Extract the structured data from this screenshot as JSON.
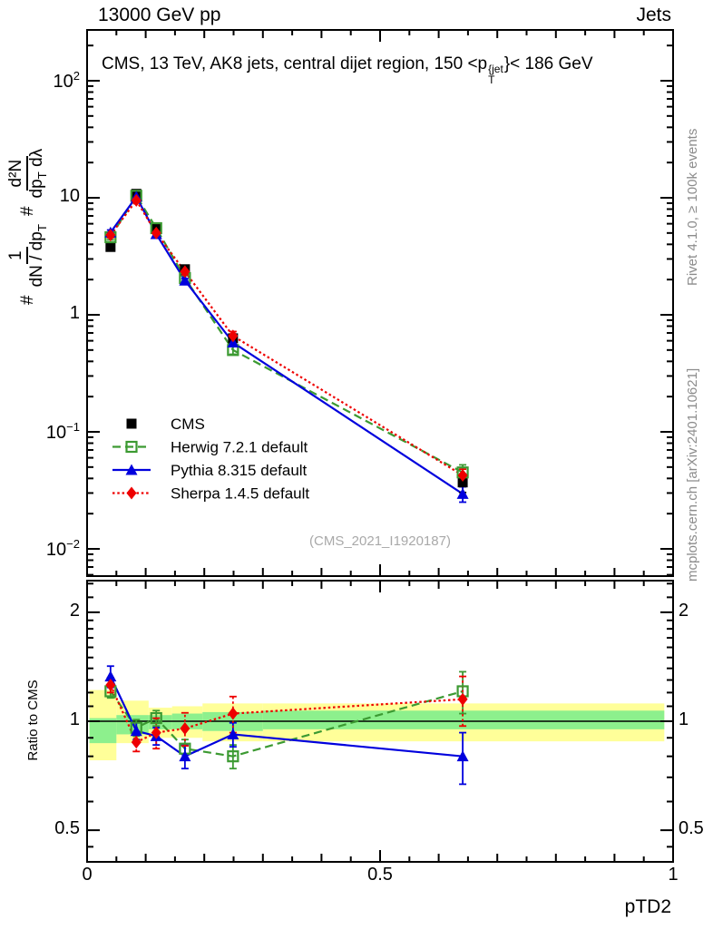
{
  "header": {
    "left": "13000 GeV pp",
    "right": "Jets"
  },
  "title": {
    "prefix": "CMS, 13 TeV, AK8 jets, central dijet region, 150 <p",
    "sup": "{jet",
    "sub": "T",
    "suffix": "}< 186 GeV"
  },
  "watermark": "(CMS_2021_I1920187)",
  "right_margin": {
    "top": "Rivet 4.1.0, ≥ 100k events",
    "bottom": "mcplots.cern.ch [arXiv:2401.10621]"
  },
  "labels": {
    "x": "pTD2",
    "ratio_y": "Ratio to CMS"
  },
  "ylabel": {
    "hash1": "#",
    "frac1_num": "1",
    "frac1_den_main": "dN / dp",
    "frac1_den_sub": "T",
    "hash2": "#",
    "frac2_num": "d²N",
    "frac2_den_main": "dp",
    "frac2_den_sub": "T",
    "frac2_den_tail": " dλ"
  },
  "colors": {
    "cms": "#000000",
    "herwig": "#3c9a32",
    "pythia": "#0000dd",
    "sherpa": "#ee0000",
    "band_yellow": "#ffff99",
    "band_green": "#8df08d",
    "side_text": "#8c8c8c",
    "watermark": "#a9a9a9"
  },
  "legend": {
    "items": [
      {
        "label": "CMS"
      },
      {
        "label": "Herwig 7.2.1 default"
      },
      {
        "label": "Pythia 8.315 default"
      },
      {
        "label": "Sherpa 1.4.5 default"
      }
    ]
  },
  "chart_data": [
    {
      "type": "line",
      "id": "main",
      "title": "CMS, 13 TeV, AK8 jets, central dijet region, 150 < pT{jet} < 186 GeV",
      "xlabel": "pTD2",
      "ylabel": "# 1/(dN/dpT) # d²N/(dpT dλ)",
      "x_axis_range": [
        0,
        1
      ],
      "y_axis_log_range": [
        0.0058,
        272
      ],
      "grid": false,
      "legend_position": "center-left-inside",
      "y_tick_labels": [
        {
          "v": 100,
          "base": "10",
          "sup": "2"
        },
        {
          "v": 10,
          "base": "10",
          "sup": ""
        },
        {
          "v": 1,
          "base": "1",
          "sup": ""
        },
        {
          "v": 0.1,
          "base": "10",
          "sup": "−1"
        },
        {
          "v": 0.01,
          "base": "10",
          "sup": "−2"
        }
      ],
      "x_ticks": [
        {
          "v": 0,
          "label": "0"
        },
        {
          "v": 0.5,
          "label": "0.5"
        },
        {
          "v": 1,
          "label": "1"
        }
      ],
      "x": [
        0.04,
        0.084,
        0.118,
        0.167,
        0.249,
        0.641
      ],
      "series": [
        {
          "name": "CMS",
          "color": "#000000",
          "marker": "square",
          "line": "none",
          "values": [
            3.8,
            10.8,
            5.4,
            2.45,
            0.63,
            0.037
          ],
          "err_frac": [
            0.06,
            0.04,
            0.04,
            0.05,
            0.07,
            0.18
          ]
        },
        {
          "name": "Herwig 7.2.1 default",
          "color": "#3c9a32",
          "marker": "open-square",
          "line": "dashed",
          "values": [
            4.6,
            10.4,
            5.5,
            2.06,
            0.5,
            0.045
          ],
          "err_frac": [
            0.05,
            0.04,
            0.04,
            0.05,
            0.08,
            0.16
          ]
        },
        {
          "name": "Pythia 8.315 default",
          "color": "#0000dd",
          "marker": "triangle",
          "line": "solid",
          "values": [
            5.05,
            10.2,
            4.9,
            1.96,
            0.58,
            0.0295
          ],
          "err_frac": [
            0.05,
            0.03,
            0.03,
            0.04,
            0.07,
            0.15
          ]
        },
        {
          "name": "Sherpa 1.4.5 default",
          "color": "#ee0000",
          "marker": "diamond",
          "line": "dotted",
          "values": [
            4.8,
            9.5,
            5.0,
            2.34,
            0.66,
            0.0425
          ],
          "err_frac": [
            0.05,
            0.04,
            0.05,
            0.06,
            0.09,
            0.13
          ]
        }
      ]
    },
    {
      "type": "line",
      "id": "ratio",
      "ylabel": "Ratio to CMS",
      "y_axis_log_range": [
        0.41,
        2.44
      ],
      "grid": false,
      "y_ticks": [
        {
          "v": 0.5,
          "label": "0.5"
        },
        {
          "v": 1,
          "label": "1"
        },
        {
          "v": 2,
          "label": "2"
        }
      ],
      "x": [
        0.04,
        0.084,
        0.118,
        0.167,
        0.249,
        0.641
      ],
      "bands": {
        "edges": [
          0.004,
          0.05,
          0.105,
          0.145,
          0.197,
          0.3,
          0.985
        ],
        "yellow": [
          [
            0.78,
            1.22
          ],
          [
            0.87,
            1.14
          ],
          [
            0.9,
            1.09
          ],
          [
            0.9,
            1.1
          ],
          [
            0.88,
            1.12
          ],
          [
            0.88,
            1.12
          ]
        ],
        "green": [
          [
            0.87,
            1.02
          ],
          [
            0.92,
            1.04
          ],
          [
            0.95,
            1.04
          ],
          [
            0.95,
            1.05
          ],
          [
            0.94,
            1.06
          ],
          [
            0.95,
            1.07
          ]
        ]
      },
      "series": [
        {
          "name": "Herwig 7.2.1 default",
          "values": [
            1.21,
            0.96,
            1.02,
            0.84,
            0.8,
            1.21
          ],
          "err": [
            0.05,
            0.05,
            0.05,
            0.05,
            0.06,
            0.16
          ]
        },
        {
          "name": "Pythia 8.315 default",
          "values": [
            1.33,
            0.94,
            0.91,
            0.8,
            0.92,
            0.8
          ],
          "err": [
            0.09,
            0.05,
            0.05,
            0.06,
            0.07,
            0.13
          ]
        },
        {
          "name": "Sherpa 1.4.5 default",
          "values": [
            1.26,
            0.875,
            0.93,
            0.955,
            1.05,
            1.15
          ],
          "err": [
            0.06,
            0.05,
            0.09,
            0.1,
            0.12,
            0.18
          ]
        }
      ]
    }
  ]
}
